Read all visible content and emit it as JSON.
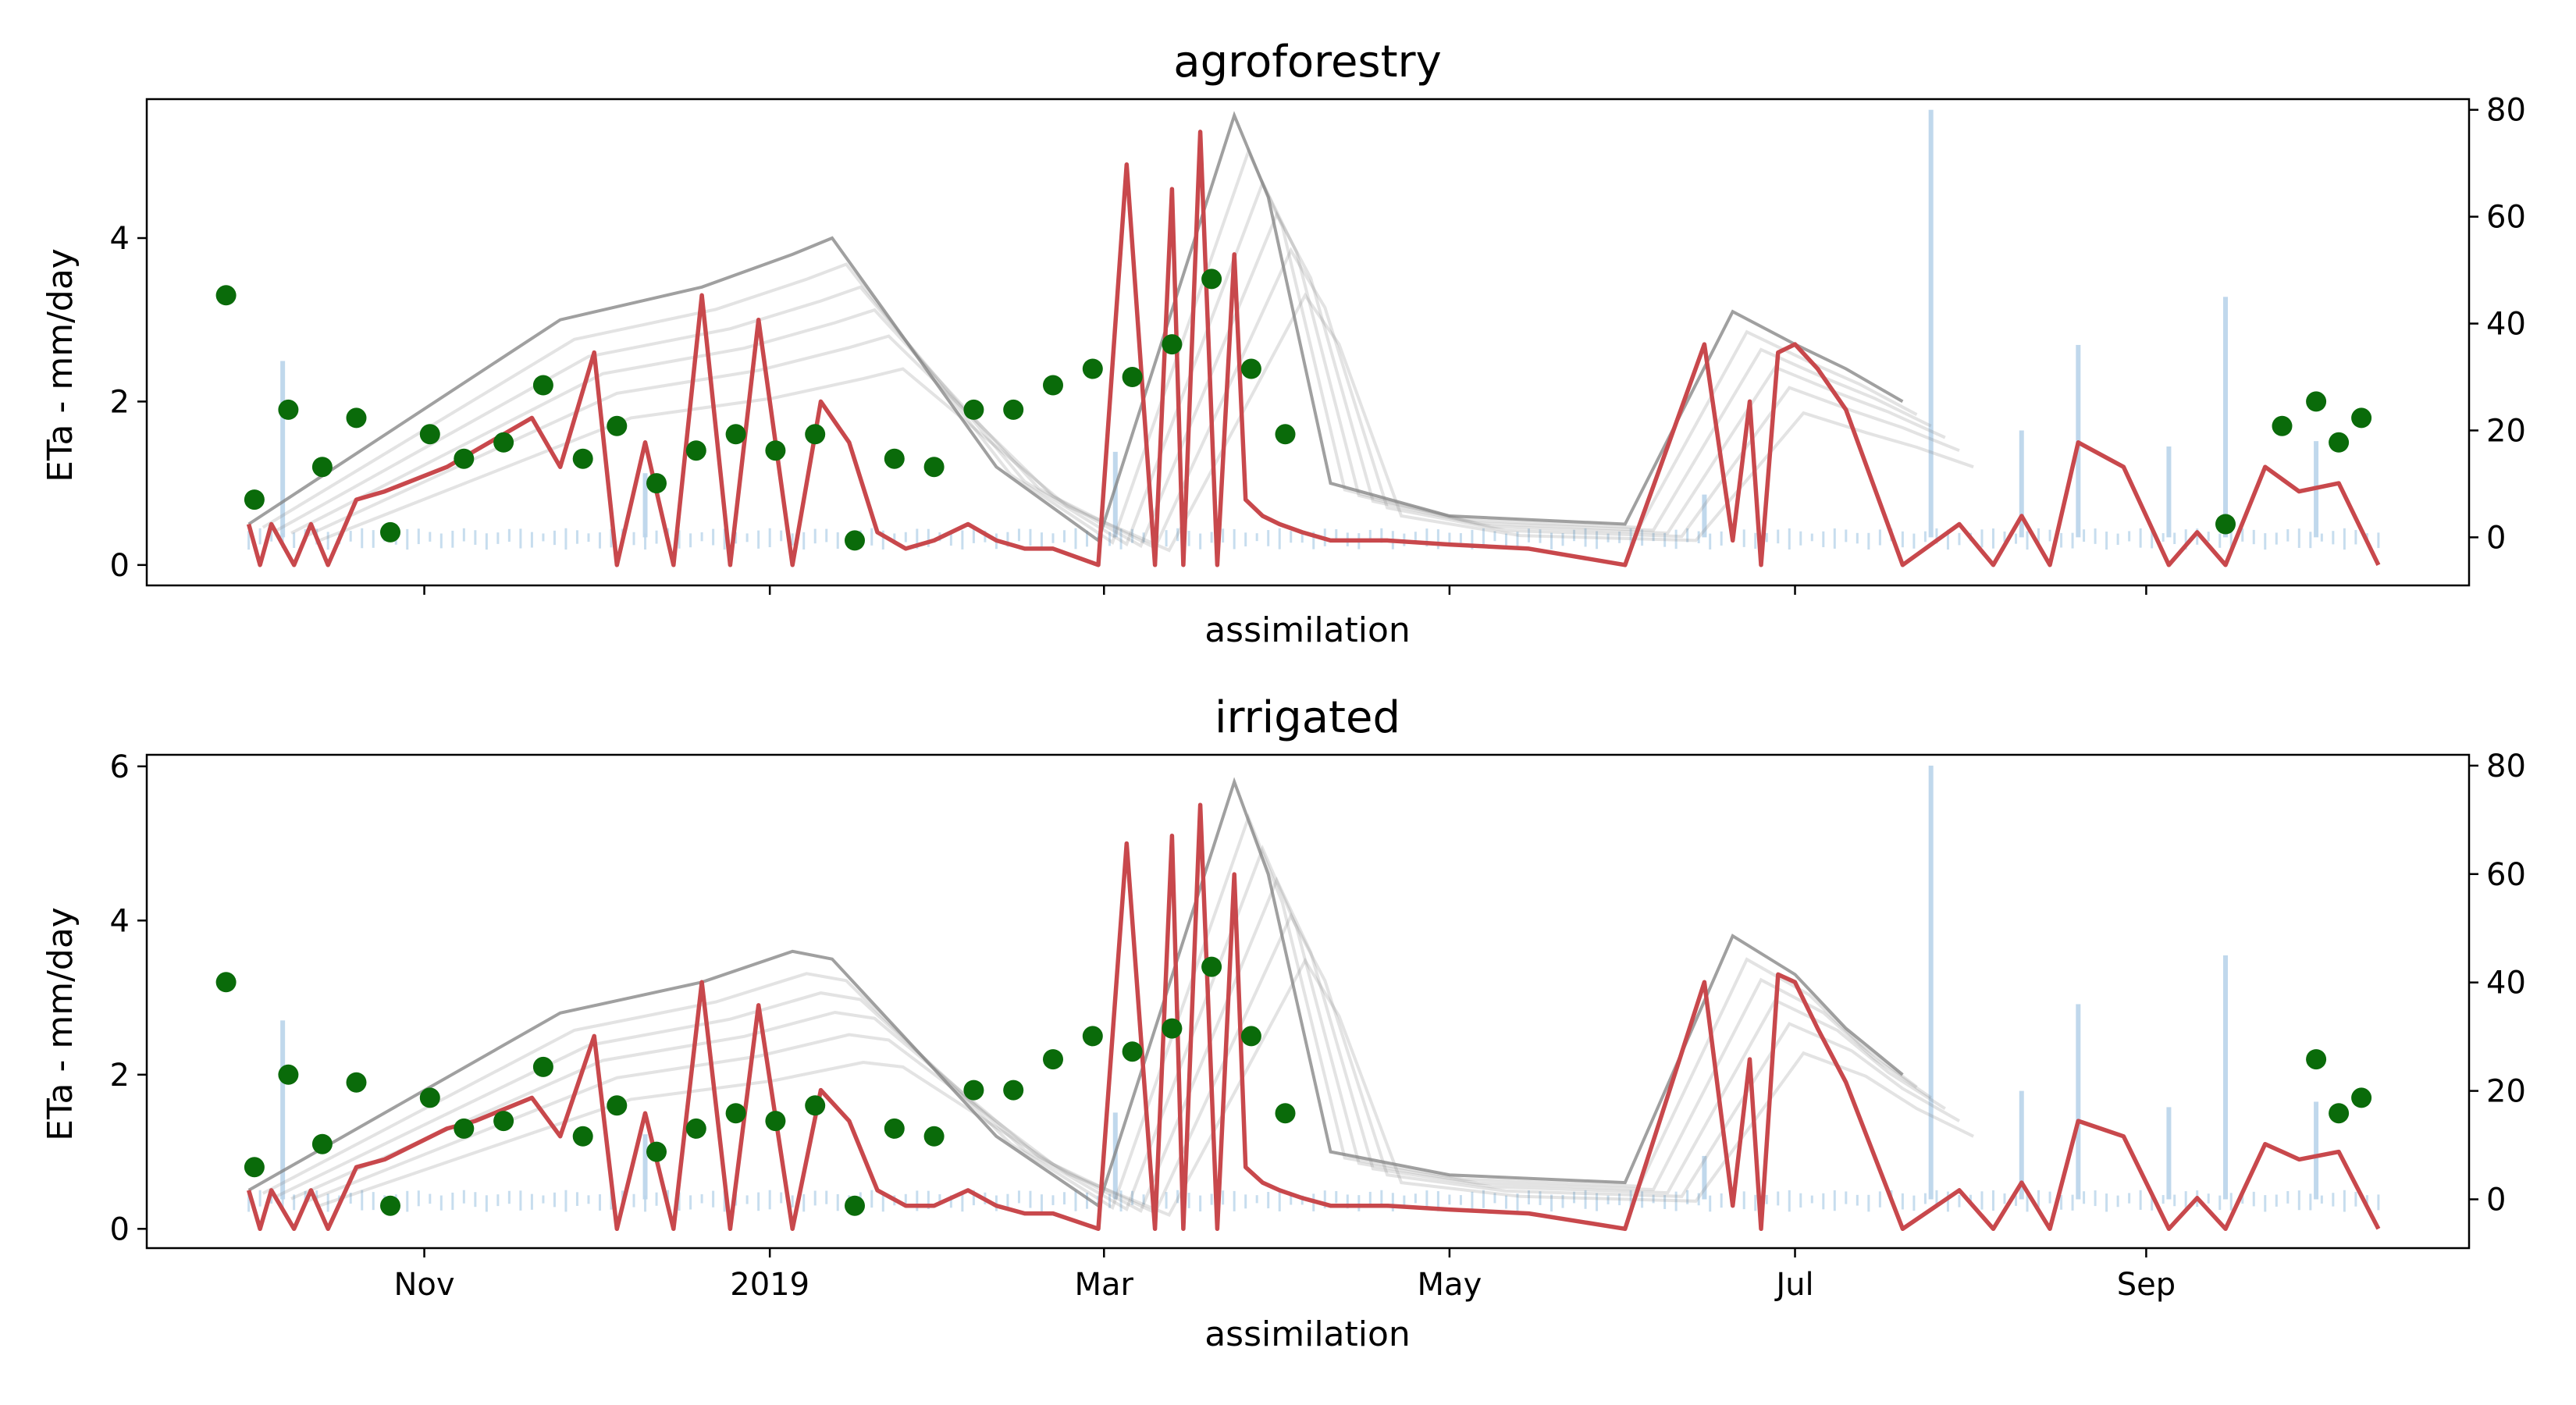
{
  "chart_data": [
    {
      "type": "line",
      "title": "agroforestry",
      "xlabel": "assimilation",
      "ylabel": "ETa - mm/day",
      "x_ticks": [
        "Nov",
        "2019",
        "Mar",
        "May",
        "Jul",
        "Sep"
      ],
      "x_tick_labels_visible": false,
      "x_tick_dates": [
        "2018-11-01",
        "2019-01-01",
        "2019-03-01",
        "2019-05-01",
        "2019-07-01",
        "2019-09-01"
      ],
      "xlim": [
        "2018-09-13",
        "2019-10-28"
      ],
      "ylim": [
        -0.25,
        5.7
      ],
      "y_ticks": [
        0,
        2,
        4
      ],
      "y2lim": [
        -9,
        82
      ],
      "y2_ticks": [
        0,
        20,
        40,
        60,
        80
      ],
      "colors": {
        "model": "#c8484c",
        "ensemble": "#808080",
        "observed": "#0a6b0a",
        "bars": "#b9d4ea"
      },
      "series": [
        {
          "kind": "model",
          "x": [
            "2018-10-01",
            "2018-10-03",
            "2018-10-05",
            "2018-10-09",
            "2018-10-12",
            "2018-10-15",
            "2018-10-20",
            "2018-10-25",
            "2018-11-05",
            "2018-11-10",
            "2018-11-20",
            "2018-11-25",
            "2018-12-01",
            "2018-12-05",
            "2018-12-10",
            "2018-12-15",
            "2018-12-20",
            "2018-12-25",
            "2018-12-30",
            "2019-01-05",
            "2019-01-10",
            "2019-01-15",
            "2019-01-20",
            "2019-01-25",
            "2019-01-30",
            "2019-02-05",
            "2019-02-10",
            "2019-02-15",
            "2019-02-20",
            "2019-02-28",
            "2019-03-05",
            "2019-03-10",
            "2019-03-13",
            "2019-03-15",
            "2019-03-18",
            "2019-03-21",
            "2019-03-24",
            "2019-03-26",
            "2019-03-29",
            "2019-04-01",
            "2019-04-05",
            "2019-04-10",
            "2019-04-20",
            "2019-05-01",
            "2019-05-15",
            "2019-06-01",
            "2019-06-15",
            "2019-06-20",
            "2019-06-23",
            "2019-06-25",
            "2019-06-28",
            "2019-07-01",
            "2019-07-05",
            "2019-07-10",
            "2019-07-20",
            "2019-07-30",
            "2019-08-05",
            "2019-08-10",
            "2019-08-15",
            "2019-08-20",
            "2019-08-28",
            "2019-09-05",
            "2019-09-10",
            "2019-09-15",
            "2019-09-22",
            "2019-09-28",
            "2019-10-05",
            "2019-10-12"
          ],
          "y": [
            0.5,
            0,
            0.5,
            0,
            0.5,
            0,
            0.8,
            0.9,
            1.2,
            1.4,
            1.8,
            1.2,
            2.6,
            0,
            1.5,
            0,
            3.3,
            0,
            3.0,
            0,
            2.0,
            1.5,
            0.4,
            0.2,
            0.3,
            0.5,
            0.3,
            0.2,
            0.2,
            0,
            4.9,
            0,
            4.6,
            0,
            5.3,
            0,
            3.8,
            0.8,
            0.6,
            0.5,
            0.4,
            0.3,
            0.3,
            0.25,
            0.2,
            0,
            2.7,
            0.3,
            2.0,
            0,
            2.6,
            2.7,
            2.4,
            1.9,
            0,
            0.5,
            0,
            0.6,
            0,
            1.5,
            1.2,
            0,
            0.4,
            0,
            1.2,
            0.9,
            1.0,
            0
          ]
        },
        {
          "kind": "ensemble-max",
          "x": [
            "2018-10-01",
            "2018-11-25",
            "2018-12-20",
            "2019-01-05",
            "2019-01-12",
            "2019-02-10",
            "2019-02-28",
            "2019-03-24",
            "2019-03-30",
            "2019-04-10",
            "2019-05-01",
            "2019-06-01",
            "2019-06-20",
            "2019-07-01",
            "2019-07-10",
            "2019-07-20"
          ],
          "y": [
            0.5,
            3.0,
            3.4,
            3.8,
            4.0,
            1.2,
            0.3,
            5.5,
            4.5,
            1.0,
            0.6,
            0.5,
            3.1,
            2.7,
            2.4,
            2.0
          ]
        },
        {
          "kind": "observed",
          "x": [
            "2018-09-27",
            "2018-10-02",
            "2018-10-08",
            "2018-10-14",
            "2018-10-20",
            "2018-10-26",
            "2018-11-02",
            "2018-11-08",
            "2018-11-15",
            "2018-11-22",
            "2018-11-29",
            "2018-12-05",
            "2018-12-12",
            "2018-12-19",
            "2018-12-26",
            "2019-01-02",
            "2019-01-09",
            "2019-01-16",
            "2019-01-23",
            "2019-01-30",
            "2019-02-06",
            "2019-02-13",
            "2019-02-20",
            "2019-02-27",
            "2019-03-06",
            "2019-03-13",
            "2019-03-20",
            "2019-03-27",
            "2019-04-02",
            "2019-09-15",
            "2019-09-25",
            "2019-10-01",
            "2019-10-05",
            "2019-10-09"
          ],
          "y": [
            3.3,
            0.8,
            1.9,
            1.2,
            1.8,
            0.4,
            1.6,
            1.3,
            1.5,
            2.2,
            1.3,
            1.7,
            1.0,
            1.4,
            1.6,
            1.4,
            1.6,
            0.3,
            1.3,
            1.2,
            1.9,
            1.9,
            2.2,
            2.4,
            2.3,
            2.7,
            3.5,
            2.4,
            1.6,
            0.5,
            1.7,
            2.0,
            1.5,
            1.8
          ]
        }
      ],
      "bars_right_axis": {
        "x": [
          "2018-10-07",
          "2018-12-10",
          "2019-03-03",
          "2019-06-15",
          "2019-07-25",
          "2019-08-10",
          "2019-08-20",
          "2019-09-05",
          "2019-09-15",
          "2019-10-01"
        ],
        "y": [
          33,
          12,
          16,
          8,
          80,
          20,
          36,
          17,
          45,
          18
        ]
      }
    },
    {
      "type": "line",
      "title": "irrigated",
      "xlabel": "assimilation",
      "ylabel": "ETa - mm/day",
      "x_ticks": [
        "Nov",
        "2019",
        "Mar",
        "May",
        "Jul",
        "Sep"
      ],
      "x_tick_labels_visible": true,
      "x_tick_dates": [
        "2018-11-01",
        "2019-01-01",
        "2019-03-01",
        "2019-05-01",
        "2019-07-01",
        "2019-09-01"
      ],
      "xlim": [
        "2018-09-13",
        "2019-10-28"
      ],
      "ylim": [
        -0.25,
        6.15
      ],
      "y_ticks": [
        0,
        2,
        4,
        6
      ],
      "y2lim": [
        -9,
        82
      ],
      "y2_ticks": [
        0,
        20,
        40,
        60,
        80
      ],
      "colors": {
        "model": "#c8484c",
        "ensemble": "#808080",
        "observed": "#0a6b0a",
        "bars": "#b9d4ea"
      },
      "series": [
        {
          "kind": "model",
          "x": [
            "2018-10-01",
            "2018-10-03",
            "2018-10-05",
            "2018-10-09",
            "2018-10-12",
            "2018-10-15",
            "2018-10-20",
            "2018-10-25",
            "2018-11-05",
            "2018-11-10",
            "2018-11-20",
            "2018-11-25",
            "2018-12-01",
            "2018-12-05",
            "2018-12-10",
            "2018-12-15",
            "2018-12-20",
            "2018-12-25",
            "2018-12-30",
            "2019-01-05",
            "2019-01-10",
            "2019-01-15",
            "2019-01-20",
            "2019-01-25",
            "2019-01-30",
            "2019-02-05",
            "2019-02-10",
            "2019-02-15",
            "2019-02-20",
            "2019-02-28",
            "2019-03-05",
            "2019-03-10",
            "2019-03-13",
            "2019-03-15",
            "2019-03-18",
            "2019-03-21",
            "2019-03-24",
            "2019-03-26",
            "2019-03-29",
            "2019-04-01",
            "2019-04-05",
            "2019-04-10",
            "2019-04-20",
            "2019-05-01",
            "2019-05-15",
            "2019-06-01",
            "2019-06-15",
            "2019-06-20",
            "2019-06-23",
            "2019-06-25",
            "2019-06-28",
            "2019-07-01",
            "2019-07-05",
            "2019-07-10",
            "2019-07-20",
            "2019-07-30",
            "2019-08-05",
            "2019-08-10",
            "2019-08-15",
            "2019-08-20",
            "2019-08-28",
            "2019-09-05",
            "2019-09-10",
            "2019-09-15",
            "2019-09-22",
            "2019-09-28",
            "2019-10-05",
            "2019-10-12"
          ],
          "y": [
            0.5,
            0,
            0.5,
            0,
            0.5,
            0,
            0.8,
            0.9,
            1.3,
            1.4,
            1.7,
            1.2,
            2.5,
            0,
            1.5,
            0,
            3.2,
            0,
            2.9,
            0,
            1.8,
            1.4,
            0.5,
            0.3,
            0.3,
            0.5,
            0.3,
            0.2,
            0.2,
            0,
            5.0,
            0,
            5.1,
            0,
            5.5,
            0,
            4.6,
            0.8,
            0.6,
            0.5,
            0.4,
            0.3,
            0.3,
            0.25,
            0.2,
            0,
            3.2,
            0.3,
            2.2,
            0,
            3.3,
            3.2,
            2.6,
            1.9,
            0,
            0.5,
            0,
            0.6,
            0,
            1.4,
            1.2,
            0,
            0.4,
            0,
            1.1,
            0.9,
            1.0,
            0
          ]
        },
        {
          "kind": "ensemble-max",
          "x": [
            "2018-10-01",
            "2018-11-25",
            "2018-12-20",
            "2019-01-05",
            "2019-01-12",
            "2019-02-10",
            "2019-02-28",
            "2019-03-24",
            "2019-03-30",
            "2019-04-10",
            "2019-05-01",
            "2019-06-01",
            "2019-06-20",
            "2019-07-01",
            "2019-07-10",
            "2019-07-20"
          ],
          "y": [
            0.5,
            2.8,
            3.2,
            3.6,
            3.5,
            1.2,
            0.3,
            5.8,
            4.6,
            1.0,
            0.7,
            0.6,
            3.8,
            3.3,
            2.6,
            2.0
          ]
        },
        {
          "kind": "observed",
          "x": [
            "2018-09-27",
            "2018-10-02",
            "2018-10-08",
            "2018-10-14",
            "2018-10-20",
            "2018-10-26",
            "2018-11-02",
            "2018-11-08",
            "2018-11-15",
            "2018-11-22",
            "2018-11-29",
            "2018-12-05",
            "2018-12-12",
            "2018-12-19",
            "2018-12-26",
            "2019-01-02",
            "2019-01-09",
            "2019-01-16",
            "2019-01-23",
            "2019-01-30",
            "2019-02-06",
            "2019-02-13",
            "2019-02-20",
            "2019-02-27",
            "2019-03-06",
            "2019-03-13",
            "2019-03-20",
            "2019-03-27",
            "2019-04-02",
            "2019-10-01",
            "2019-10-05",
            "2019-10-09"
          ],
          "y": [
            3.2,
            0.8,
            2.0,
            1.1,
            1.9,
            0.3,
            1.7,
            1.3,
            1.4,
            2.1,
            1.2,
            1.6,
            1.0,
            1.3,
            1.5,
            1.4,
            1.6,
            0.3,
            1.3,
            1.2,
            1.8,
            1.8,
            2.2,
            2.5,
            2.3,
            2.6,
            3.4,
            2.5,
            1.5,
            2.2,
            1.5,
            1.7
          ]
        }
      ],
      "bars_right_axis": {
        "x": [
          "2018-10-07",
          "2018-12-10",
          "2019-03-03",
          "2019-06-15",
          "2019-07-25",
          "2019-08-10",
          "2019-08-20",
          "2019-09-05",
          "2019-09-15",
          "2019-10-01"
        ],
        "y": [
          33,
          12,
          16,
          8,
          80,
          20,
          36,
          17,
          45,
          18
        ]
      }
    }
  ]
}
